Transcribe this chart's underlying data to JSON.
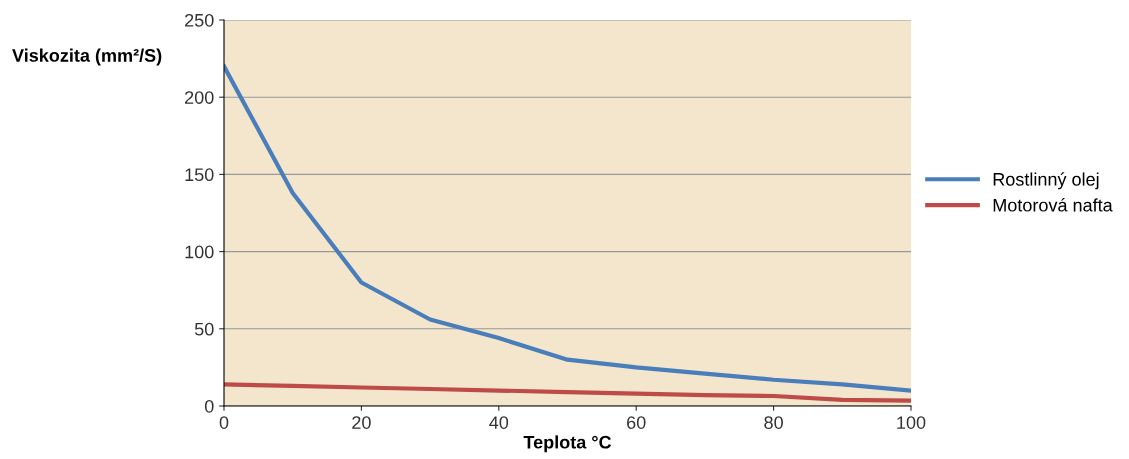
{
  "chart_data": {
    "type": "line",
    "xlabel": "Teplota °C",
    "ylabel": "Viskozita (mm²/S)",
    "x": [
      0,
      10,
      20,
      30,
      40,
      50,
      60,
      70,
      80,
      90,
      100
    ],
    "series": [
      {
        "name": "Rostlinný olej",
        "color": "#4a7ebb",
        "values": [
          220,
          138,
          80,
          56,
          44,
          30,
          25,
          21,
          17,
          14,
          10
        ]
      },
      {
        "name": "Motorová nafta",
        "color": "#be4b48",
        "values": [
          14,
          13,
          12,
          11,
          10,
          9,
          8,
          7,
          6.5,
          4,
          3.5
        ]
      }
    ],
    "xlim": [
      0,
      100
    ],
    "ylim": [
      0,
      250
    ],
    "xticks": [
      0,
      20,
      40,
      60,
      80,
      100
    ],
    "yticks": [
      0,
      50,
      100,
      150,
      200,
      250
    ],
    "grid": "y",
    "legend": "right",
    "marker": "none",
    "line_style": "solid"
  }
}
